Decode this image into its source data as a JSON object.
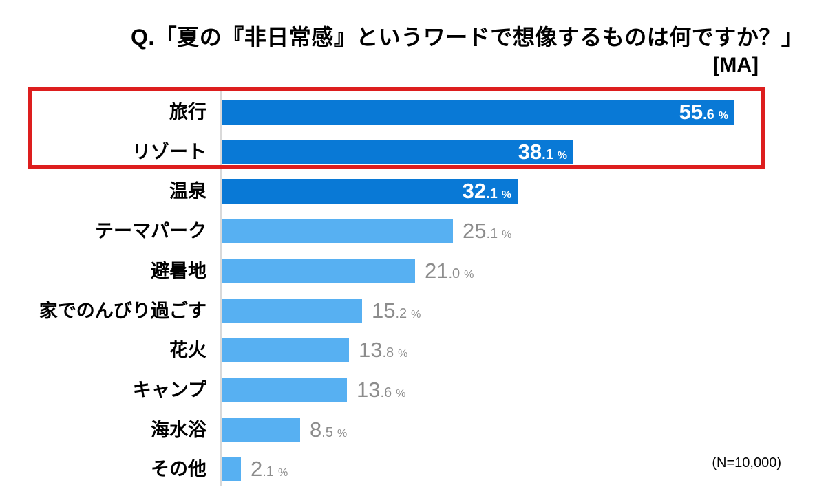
{
  "title": {
    "line1": "Q.「夏の『非日常感』というワードで想像するものは何ですか？」",
    "line2": "[MA]"
  },
  "note": "(N=10,000)",
  "chart_data": {
    "type": "bar",
    "orientation": "horizontal",
    "title": "Q.「夏の『非日常感』というワードで想像するものは何ですか？」 [MA]",
    "categories": [
      "旅行",
      "リゾート",
      "温泉",
      "テーマパーク",
      "避暑地",
      "家でのんびり過ごす",
      "花火",
      "キャンプ",
      "海水浴",
      "その他"
    ],
    "values": [
      55.6,
      38.1,
      32.1,
      25.1,
      21.0,
      15.2,
      13.8,
      13.6,
      8.5,
      2.1
    ],
    "value_labels": [
      "55.6 %",
      "38.1 %",
      "32.1 %",
      "25.1 %",
      "21.0 %",
      "15.2 %",
      "13.8 %",
      "13.6 %",
      "8.5 %",
      "2.1 %"
    ],
    "value_suffix": "%",
    "xlim": [
      0,
      60
    ],
    "grid": false,
    "legend": null,
    "sample_size_note": "(N=10,000)",
    "dark_bar_count": 3,
    "highlighted_categories": [
      "旅行",
      "リゾート"
    ],
    "colors": {
      "bar_dark": "#0979d6",
      "bar_light": "#57b0f2",
      "value_inside_text": "#ffffff",
      "value_outside_text": "#8c8c8c",
      "category_text": "#000000",
      "highlight_border": "#dd1e1e",
      "axis_line": "#d9d9d9"
    }
  }
}
